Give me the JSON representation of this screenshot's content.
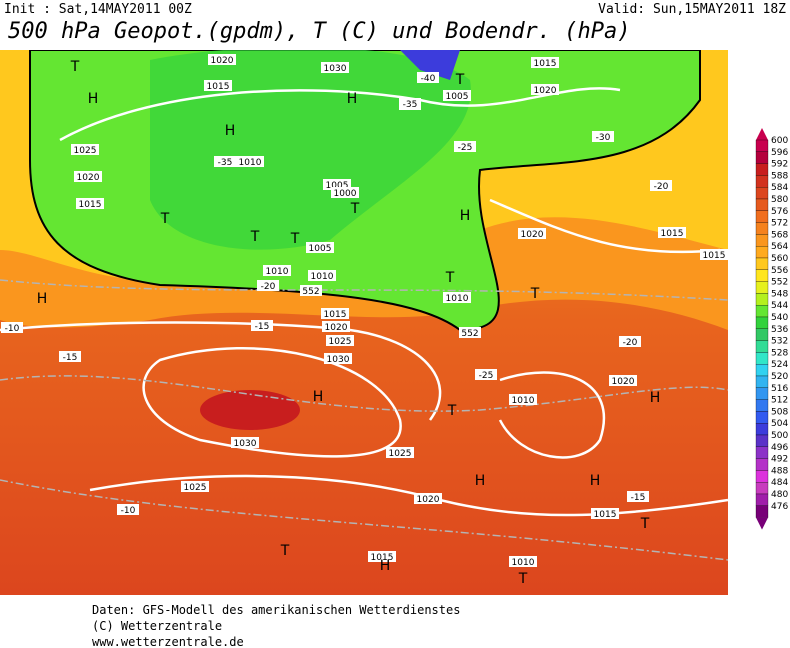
{
  "header": {
    "init": "Init : Sat,14MAY2011 00Z",
    "valid": "Valid: Sun,15MAY2011 18Z",
    "title": "500 hPa Geopot.(gpdm), T (C) und Bodendr. (hPa)"
  },
  "colorbar": {
    "values": [
      600,
      596,
      592,
      588,
      584,
      580,
      576,
      572,
      568,
      564,
      560,
      556,
      552,
      548,
      544,
      540,
      536,
      532,
      528,
      524,
      520,
      516,
      512,
      508,
      504,
      500,
      496,
      492,
      488,
      484,
      480,
      476
    ],
    "colors": [
      "#c8004e",
      "#b4003c",
      "#c81e1e",
      "#d2321e",
      "#dc461e",
      "#e65a1e",
      "#f06e1e",
      "#f5821e",
      "#fa961e",
      "#ffaa1e",
      "#ffc81e",
      "#ffe61e",
      "#e6f01e",
      "#b4f01e",
      "#64e632",
      "#32d23c",
      "#32c864",
      "#32dc96",
      "#32e6c8",
      "#32d2f0",
      "#32b4f0",
      "#3296f0",
      "#3278f0",
      "#325af0",
      "#3c3cdc",
      "#5a32c8",
      "#8c32c8",
      "#b432c8",
      "#dc32dc",
      "#c83cbe",
      "#a01eaa",
      "#780078"
    ]
  },
  "map_labels": [
    "1020",
    "1015",
    "1030",
    "1005",
    "1015",
    "1020",
    "1025",
    "1020",
    "1015",
    "1010",
    "1010",
    "1005",
    "1000",
    "1005",
    "1010",
    "1015",
    "1020",
    "1025",
    "1030",
    "1030",
    "1025",
    "1025",
    "1020",
    "1020",
    "1015",
    "1015",
    "1010",
    "1010",
    "1020",
    "1015",
    "1015",
    "1010",
    "-35",
    "-30",
    "-25",
    "-20",
    "-15",
    "-10",
    "-15",
    "-20",
    "-25",
    "-30",
    "-35",
    "-40",
    "-20",
    "-15",
    "-10",
    "H",
    "H",
    "H",
    "H",
    "H",
    "H",
    "H",
    "H",
    "H",
    "H",
    "T",
    "T",
    "T",
    "T",
    "T",
    "T",
    "T",
    "T",
    "T",
    "T",
    "T",
    "T",
    "552",
    "552"
  ],
  "footer": [
    "Daten: GFS-Modell des amerikanischen Wetterdienstes",
    "(C) Wetterzentrale",
    "www.wetterzentrale.de"
  ]
}
